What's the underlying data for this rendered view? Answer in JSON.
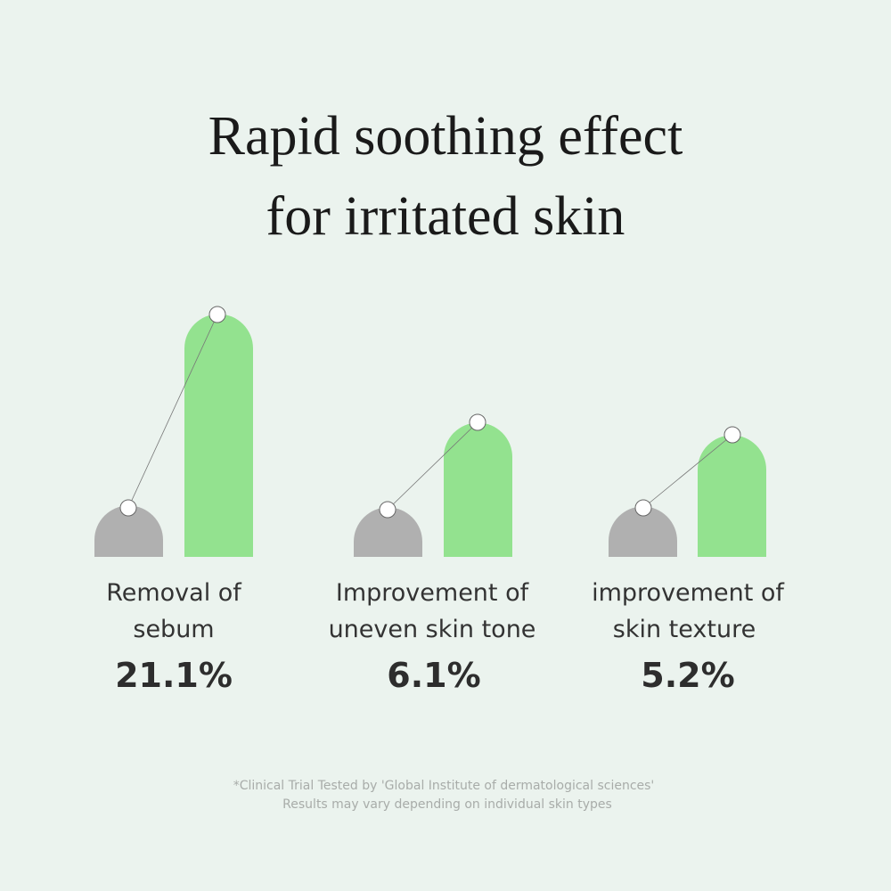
{
  "title": [
    "Rapid soothing effect",
    "for irritated skin"
  ],
  "items": [
    {
      "label": [
        "Removal of",
        "sebum"
      ],
      "value": "21.1%"
    },
    {
      "label": [
        "Improvement of",
        "uneven skin tone"
      ],
      "value": "6.1%"
    },
    {
      "label": [
        "improvement of",
        "skin texture"
      ],
      "value": "5.2%"
    }
  ],
  "footnote": [
    "*Clinical Trial Tested by 'Global Institute of dermatological sciences'",
    "Results may vary depending on individual skin types"
  ]
}
